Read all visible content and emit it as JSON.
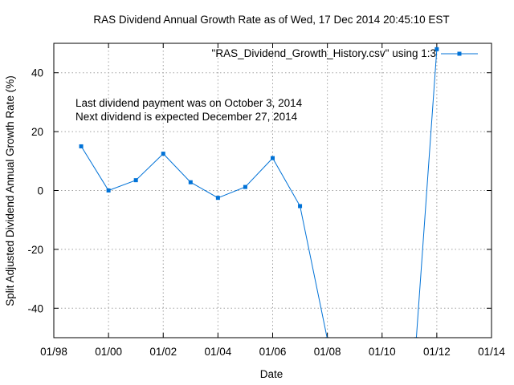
{
  "chart_data": {
    "type": "line",
    "title": "RAS Dividend Annual Growth Rate as of Wed, 17 Dec 2014 20:45:10 EST",
    "xlabel": "Date",
    "ylabel": "Split Adjusted Dividend Annual Growth Rate (%)",
    "xlim": [
      "1998-01",
      "2014-01"
    ],
    "ylim": [
      -50,
      50
    ],
    "x_ticks": [
      "1998-01",
      "2000-01",
      "2002-01",
      "2004-01",
      "2006-01",
      "2008-01",
      "2010-01",
      "2012-01",
      "2014-01"
    ],
    "x_tick_labels": [
      "01/98",
      "01/00",
      "01/02",
      "01/04",
      "01/06",
      "01/08",
      "01/10",
      "01/12",
      "01/14"
    ],
    "y_ticks": [
      -40,
      -20,
      0,
      20,
      40
    ],
    "y_tick_labels": [
      "-40",
      "-20",
      "0",
      "20",
      "40"
    ],
    "grid": true,
    "legend_position": "top-right",
    "series": [
      {
        "name": "\"RAS_Dividend_Growth_History.csv\" using 1:3",
        "color": "#0072d7",
        "x": [
          "1999-01",
          "2000-01",
          "2001-01",
          "2002-01",
          "2003-01",
          "2004-01",
          "2005-01",
          "2006-01",
          "2007-01",
          "2008-01",
          "2011-04",
          "2012-01"
        ],
        "y": [
          15,
          0,
          3.5,
          12.5,
          2.8,
          -2.5,
          1.2,
          11,
          -5.3,
          -50.5,
          -50.5,
          48
        ]
      }
    ],
    "annotations": [
      "Last dividend payment was on October 3, 2014",
      "Next dividend is expected December 27, 2014"
    ]
  }
}
